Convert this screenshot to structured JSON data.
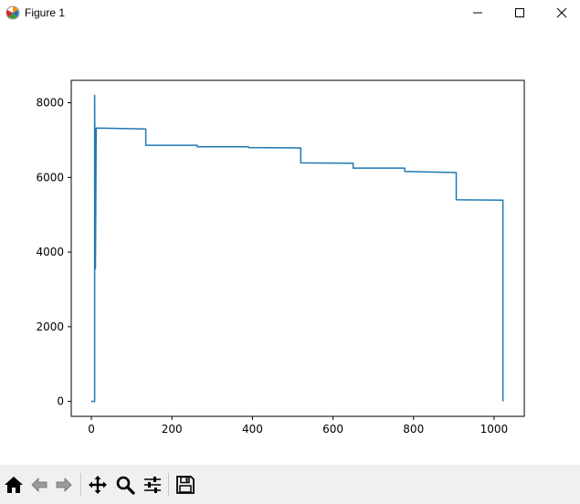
{
  "window": {
    "title": "Figure 1",
    "icon": "matplotlib-icon",
    "controls": [
      "minimize-icon",
      "maximize-icon",
      "close-icon"
    ]
  },
  "toolbar": {
    "tools": [
      "home-icon",
      "back-icon",
      "forward-icon",
      "pan-icon",
      "zoom-icon",
      "configure-subplots-icon",
      "save-icon"
    ]
  },
  "chart_data": {
    "type": "line",
    "title": "",
    "xlabel": "",
    "ylabel": "",
    "xlim": [
      -50,
      1075
    ],
    "ylim": [
      -400,
      8600
    ],
    "xticks": [
      0,
      200,
      400,
      600,
      800,
      1000
    ],
    "yticks": [
      0,
      2000,
      4000,
      6000,
      8000
    ],
    "xtick_labels": [
      "0",
      "200",
      "400",
      "600",
      "800",
      "1000"
    ],
    "ytick_labels": [
      "0",
      "2000",
      "4000",
      "6000",
      "8000"
    ],
    "grid": false,
    "line_color": "#1f77b4",
    "series": [
      {
        "x": [
          0,
          8,
          8,
          10,
          12,
          12,
          135,
          135,
          263,
          263,
          390,
          390,
          520,
          520,
          650,
          650,
          778,
          778,
          906,
          906,
          1022,
          1022
        ],
        "y": [
          0,
          0,
          8200,
          3550,
          7300,
          7320,
          7300,
          6860,
          6860,
          6820,
          6820,
          6800,
          6790,
          6390,
          6380,
          6250,
          6250,
          6160,
          6130,
          5400,
          5390,
          0
        ]
      }
    ]
  }
}
